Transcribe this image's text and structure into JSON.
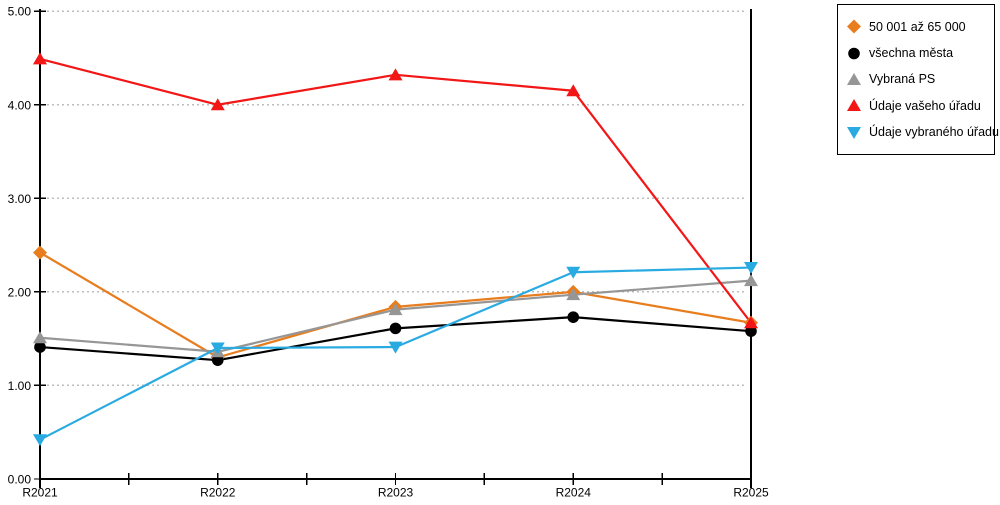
{
  "chart_data": {
    "type": "line",
    "title": "",
    "categories": [
      "R2021",
      "R2022",
      "R2023",
      "R2024",
      "R2025"
    ],
    "series": [
      {
        "name": "50 001 až 65 000",
        "marker": "diamond",
        "color": "#E87D1E",
        "values": [
          2.42,
          1.3,
          1.84,
          2.0,
          1.67
        ]
      },
      {
        "name": "všechna města",
        "marker": "circle",
        "color": "#000000",
        "values": [
          1.41,
          1.27,
          1.61,
          1.73,
          1.58
        ]
      },
      {
        "name": "Vybraná PS",
        "marker": "triangle-up",
        "color": "#969696",
        "values": [
          1.51,
          1.36,
          1.81,
          1.97,
          2.12
        ]
      },
      {
        "name": "Údaje vašeho úřadu",
        "marker": "triangle-up",
        "color": "#F21616",
        "values": [
          4.49,
          4.0,
          4.32,
          4.15,
          1.67
        ]
      },
      {
        "name": "Údaje vybraného úřadu",
        "marker": "triangle-down",
        "color": "#29ABE2",
        "values": [
          0.42,
          1.4,
          1.41,
          2.21,
          2.26
        ]
      }
    ],
    "xlabel": "",
    "ylabel": "",
    "ylim": [
      0,
      5
    ],
    "ytick_step": 1,
    "ytick_labels": [
      "0.00",
      "1.00",
      "2.00",
      "3.00",
      "4.00",
      "5.00"
    ],
    "x_minor_ticks": true,
    "grid": "horizontal-dashed",
    "gridline_color": "#BDBDBD",
    "axis_color": "#000000",
    "background_color": "#FFFFFF",
    "legend_position": "outside-top-right",
    "legend_border_color": "#000000"
  }
}
